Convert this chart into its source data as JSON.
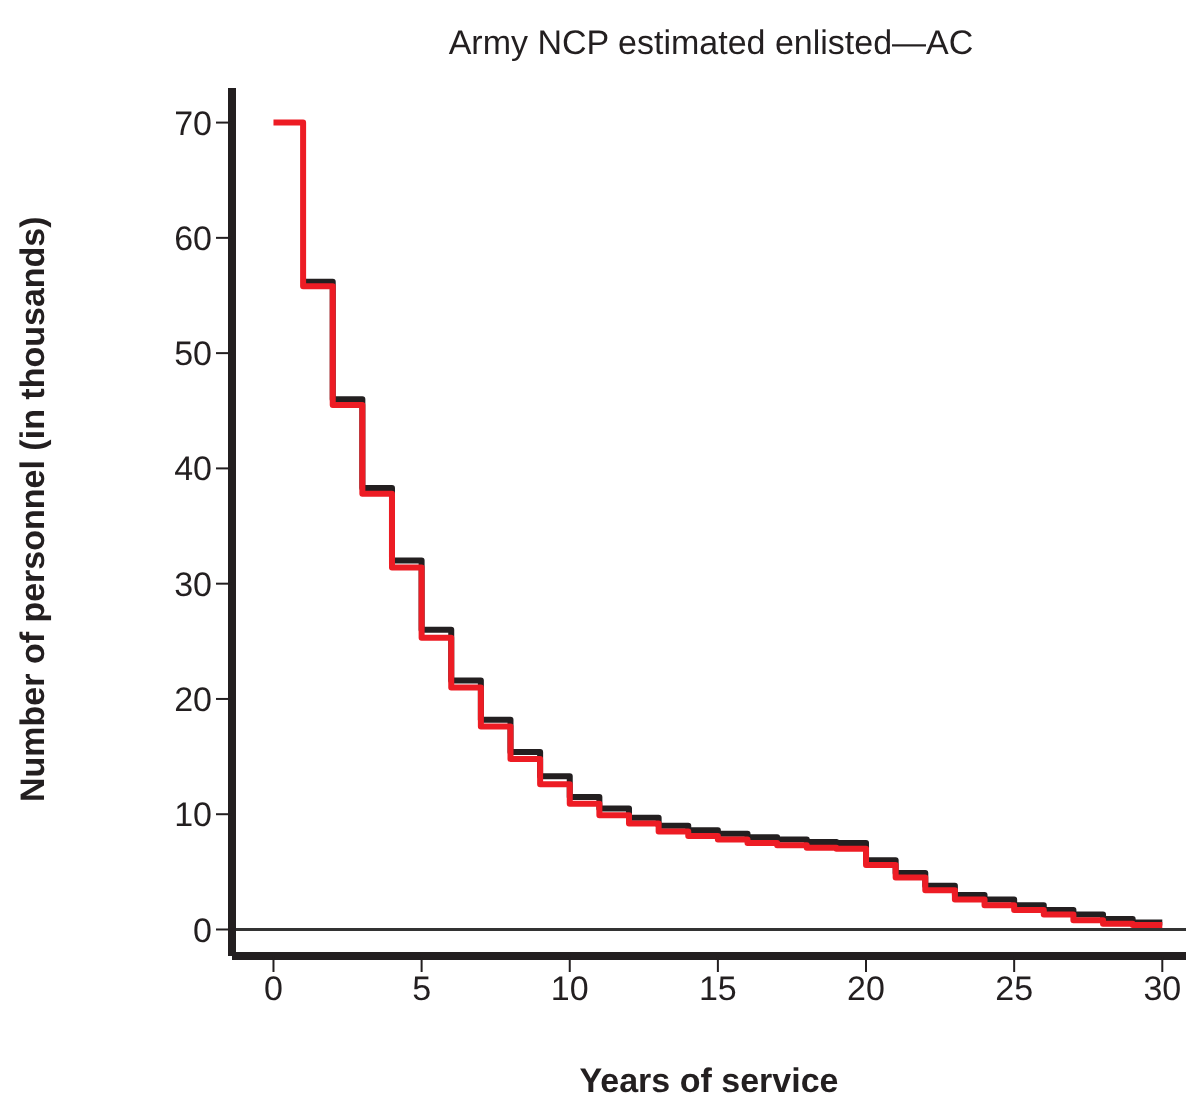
{
  "chart_data": {
    "type": "step",
    "title": "Army NCP estimated enlisted—AC",
    "xlabel": "Years of service",
    "ylabel": "Number of personnel (in thousands)",
    "x": [
      0,
      1,
      2,
      3,
      4,
      5,
      6,
      7,
      8,
      9,
      10,
      11,
      12,
      13,
      14,
      15,
      16,
      17,
      18,
      19,
      20,
      21,
      22,
      23,
      24,
      25,
      26,
      27,
      28,
      29,
      30
    ],
    "series": [
      {
        "color": "#231f20",
        "values": [
          null,
          56.2,
          46,
          38.3,
          32,
          26,
          21.6,
          18.2,
          15.4,
          13.3,
          11.5,
          10.5,
          9.7,
          9.0,
          8.6,
          8.3,
          8.0,
          7.8,
          7.6,
          7.5,
          6.0,
          4.9,
          3.8,
          3.0,
          2.6,
          2.1,
          1.7,
          1.3,
          0.9,
          0.6,
          0.6
        ]
      },
      {
        "color": "#ed1c24",
        "values": [
          70,
          55.8,
          45.5,
          37.8,
          31.4,
          25.3,
          21,
          17.6,
          14.8,
          12.6,
          10.9,
          9.9,
          9.2,
          8.5,
          8.1,
          7.8,
          7.5,
          7.3,
          7.1,
          7.0,
          5.6,
          4.5,
          3.4,
          2.6,
          2.1,
          1.7,
          1.3,
          0.8,
          0.5,
          0.4,
          0.4
        ]
      }
    ],
    "xlim": [
      -1.4,
      30.8
    ],
    "xticks": [
      0,
      5,
      10,
      15,
      20,
      25,
      30
    ],
    "ylim": [
      -2.3,
      73
    ],
    "yticks": [
      0,
      10,
      20,
      30,
      40,
      50,
      60,
      70
    ],
    "ref_lines": [
      {
        "axis": "y",
        "value": 0,
        "color": "#333333"
      }
    ],
    "grid": false,
    "legend": false,
    "marker": "none",
    "line_style": "solid"
  }
}
